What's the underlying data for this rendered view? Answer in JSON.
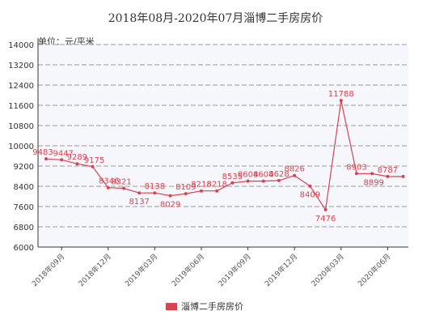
{
  "chart_data": {
    "type": "line",
    "title": "2018年08月-2020年07月淄博二手房房价",
    "unit_label": "单位：元/平米",
    "legend": "淄博二手房房价",
    "color": "#d9434f",
    "ylim": [
      6000,
      14000
    ],
    "y_ticks": [
      6000,
      6800,
      7600,
      8400,
      9200,
      10000,
      10800,
      11600,
      12400,
      13200,
      14000
    ],
    "x_ticks": [
      "2018年09月",
      "2018年12月",
      "2019年03月",
      "2019年06月",
      "2019年09月",
      "2019年12月",
      "2020年03月",
      "2020年06月"
    ],
    "x": [
      "2018年08月",
      "2018年09月",
      "2018年10月",
      "2018年11月",
      "2018年12月",
      "2019年01月",
      "2019年02月",
      "2019年03月",
      "2019年04月",
      "2019年05月",
      "2019年06月",
      "2019年07月",
      "2019年08月",
      "2019年09月",
      "2019年10月",
      "2019年11月",
      "2019年12月",
      "2020年01月",
      "2020年02月",
      "2020年03月",
      "2020年04月",
      "2020年05月",
      "2020年06月",
      "2020年07月"
    ],
    "values": [
      9483,
      9447,
      9289,
      9175,
      8346,
      8321,
      8137,
      8138,
      8029,
      8109,
      8218,
      8218,
      8535,
      8604,
      8604,
      8628,
      8826,
      8409,
      7476,
      11788,
      8903,
      8899,
      8787,
      8787
    ],
    "labels": [
      "9483",
      "9447",
      "9289",
      "9175",
      "8346",
      "8321",
      "8137",
      "8138",
      "8029",
      "8109",
      "8218",
      "8218",
      "8535",
      "8604",
      "8604",
      "8628",
      "8826",
      "8409",
      "7476",
      "11788",
      "8903",
      "8899",
      "8787",
      ""
    ]
  }
}
